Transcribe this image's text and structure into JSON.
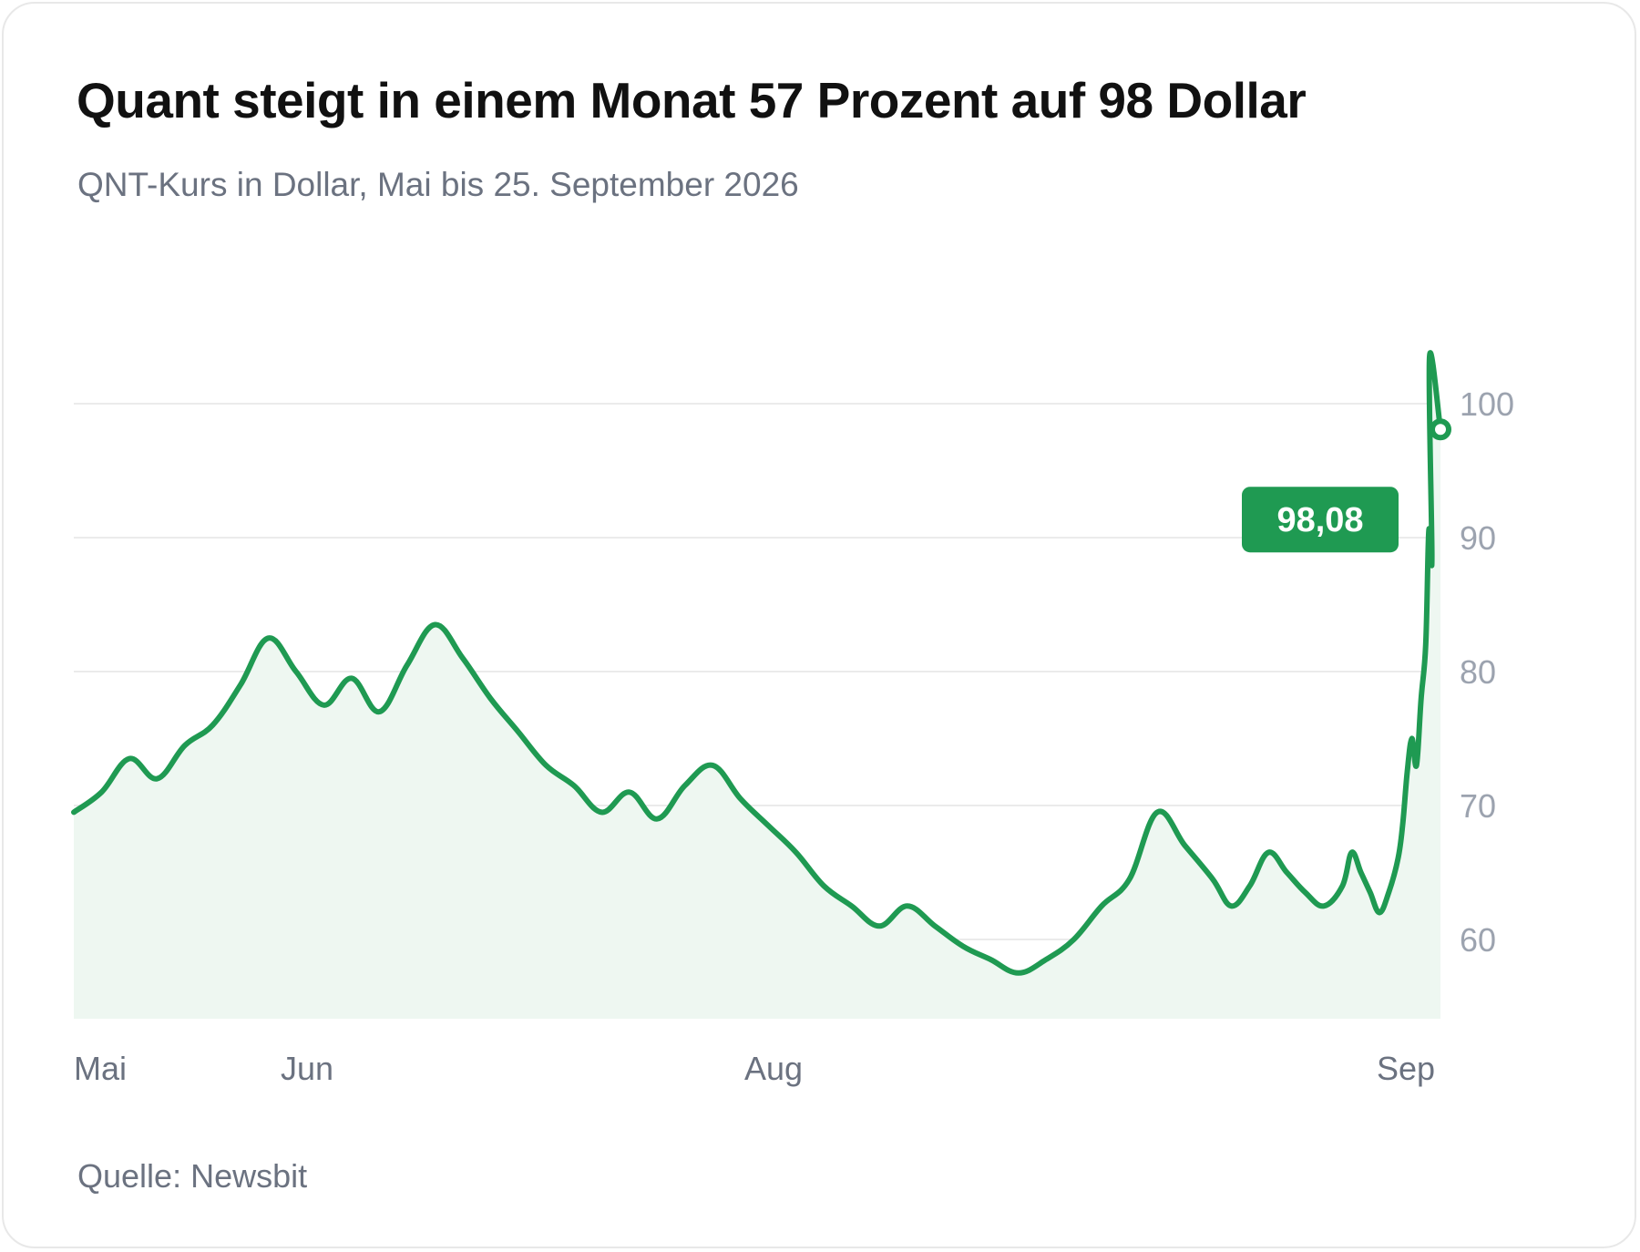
{
  "title": "Quant steigt in einem Monat 57 Prozent auf 98 Dollar",
  "subtitle": "QNT-Kurs in Dollar, Mai bis 25. September 2026",
  "source": "Quelle: Newsbit",
  "colors": {
    "line": "#1f9a52",
    "area": "#eef7f1",
    "badge": "#1f9a52",
    "grid": "#ebebeb"
  },
  "chart_data": {
    "type": "area",
    "title": "Quant steigt in einem Monat 57 Prozent auf 98 Dollar",
    "subtitle": "QNT-Kurs in Dollar, Mai bis 25. September 2026",
    "xlabel": "",
    "ylabel": "",
    "x_ticks": [
      {
        "label": "Mai",
        "value": "2026-05-01"
      },
      {
        "label": "Jun",
        "value": "2026-06-01"
      },
      {
        "label": "Aug",
        "value": "2026-08-01"
      },
      {
        "label": "Sep",
        "value": "2026-09-01"
      }
    ],
    "y_ticks": [
      60,
      70,
      80,
      90,
      100
    ],
    "y_tick_labels": [
      "60",
      "70",
      "80",
      "90",
      "100"
    ],
    "ylim": [
      54,
      104
    ],
    "xlim": [
      "2026-05-01",
      "2026-09-25"
    ],
    "grid": true,
    "y_axis_position": "right",
    "series": [
      {
        "values": [
          [
            "2026-05-01",
            69.5
          ],
          [
            "2026-05-04",
            71.0
          ],
          [
            "2026-05-07",
            73.5
          ],
          [
            "2026-05-10",
            72.0
          ],
          [
            "2026-05-13",
            74.5
          ],
          [
            "2026-05-16",
            76.0
          ],
          [
            "2026-05-19",
            79.0
          ],
          [
            "2026-05-22",
            82.5
          ],
          [
            "2026-05-25",
            80.0
          ],
          [
            "2026-05-28",
            77.5
          ],
          [
            "2026-05-31",
            79.5
          ],
          [
            "2026-06-03",
            77.0
          ],
          [
            "2026-06-06",
            80.5
          ],
          [
            "2026-06-09",
            83.5
          ],
          [
            "2026-06-12",
            81.0
          ],
          [
            "2026-06-15",
            78.0
          ],
          [
            "2026-06-18",
            75.5
          ],
          [
            "2026-06-21",
            73.0
          ],
          [
            "2026-06-24",
            71.5
          ],
          [
            "2026-06-27",
            69.5
          ],
          [
            "2026-06-30",
            71.0
          ],
          [
            "2026-07-03",
            69.0
          ],
          [
            "2026-07-06",
            71.5
          ],
          [
            "2026-07-09",
            73.0
          ],
          [
            "2026-07-12",
            70.5
          ],
          [
            "2026-07-15",
            68.5
          ],
          [
            "2026-07-18",
            66.5
          ],
          [
            "2026-07-21",
            64.0
          ],
          [
            "2026-07-24",
            62.5
          ],
          [
            "2026-07-27",
            61.0
          ],
          [
            "2026-07-30",
            62.5
          ],
          [
            "2026-08-02",
            61.0
          ],
          [
            "2026-08-05",
            59.5
          ],
          [
            "2026-08-08",
            58.5
          ],
          [
            "2026-08-11",
            57.5
          ],
          [
            "2026-08-14",
            58.5
          ],
          [
            "2026-08-17",
            60.0
          ],
          [
            "2026-08-20",
            62.5
          ],
          [
            "2026-08-23",
            64.5
          ],
          [
            "2026-08-26",
            69.5
          ],
          [
            "2026-08-29",
            67.0
          ],
          [
            "2026-09-01",
            64.5
          ],
          [
            "2026-09-03",
            62.5
          ],
          [
            "2026-09-05",
            64.0
          ],
          [
            "2026-09-07",
            66.5
          ],
          [
            "2026-09-09",
            65.0
          ],
          [
            "2026-09-11",
            63.5
          ],
          [
            "2026-09-13",
            62.5
          ],
          [
            "2026-09-15",
            64.0
          ],
          [
            "2026-09-16",
            66.5
          ],
          [
            "2026-09-17",
            65.0
          ],
          [
            "2026-09-18",
            63.5
          ],
          [
            "2026-09-19",
            62.0
          ],
          [
            "2026-09-20",
            63.5
          ],
          [
            "2026-09-21",
            66.0
          ],
          [
            "2026-09-21",
            68.5
          ],
          [
            "2026-09-22",
            72.5
          ],
          [
            "2026-09-22",
            75.0
          ],
          [
            "2026-09-23",
            73.0
          ],
          [
            "2026-09-23",
            78.0
          ],
          [
            "2026-09-24",
            82.0
          ],
          [
            "2026-09-24",
            90.5
          ],
          [
            "2026-09-24",
            88.5
          ],
          [
            "2026-09-25",
            103.5
          ],
          [
            "2026-09-25",
            98.08
          ]
        ]
      }
    ],
    "annotations": [
      {
        "type": "last-value-badge",
        "label": "98,08",
        "value": 98.08
      }
    ]
  }
}
